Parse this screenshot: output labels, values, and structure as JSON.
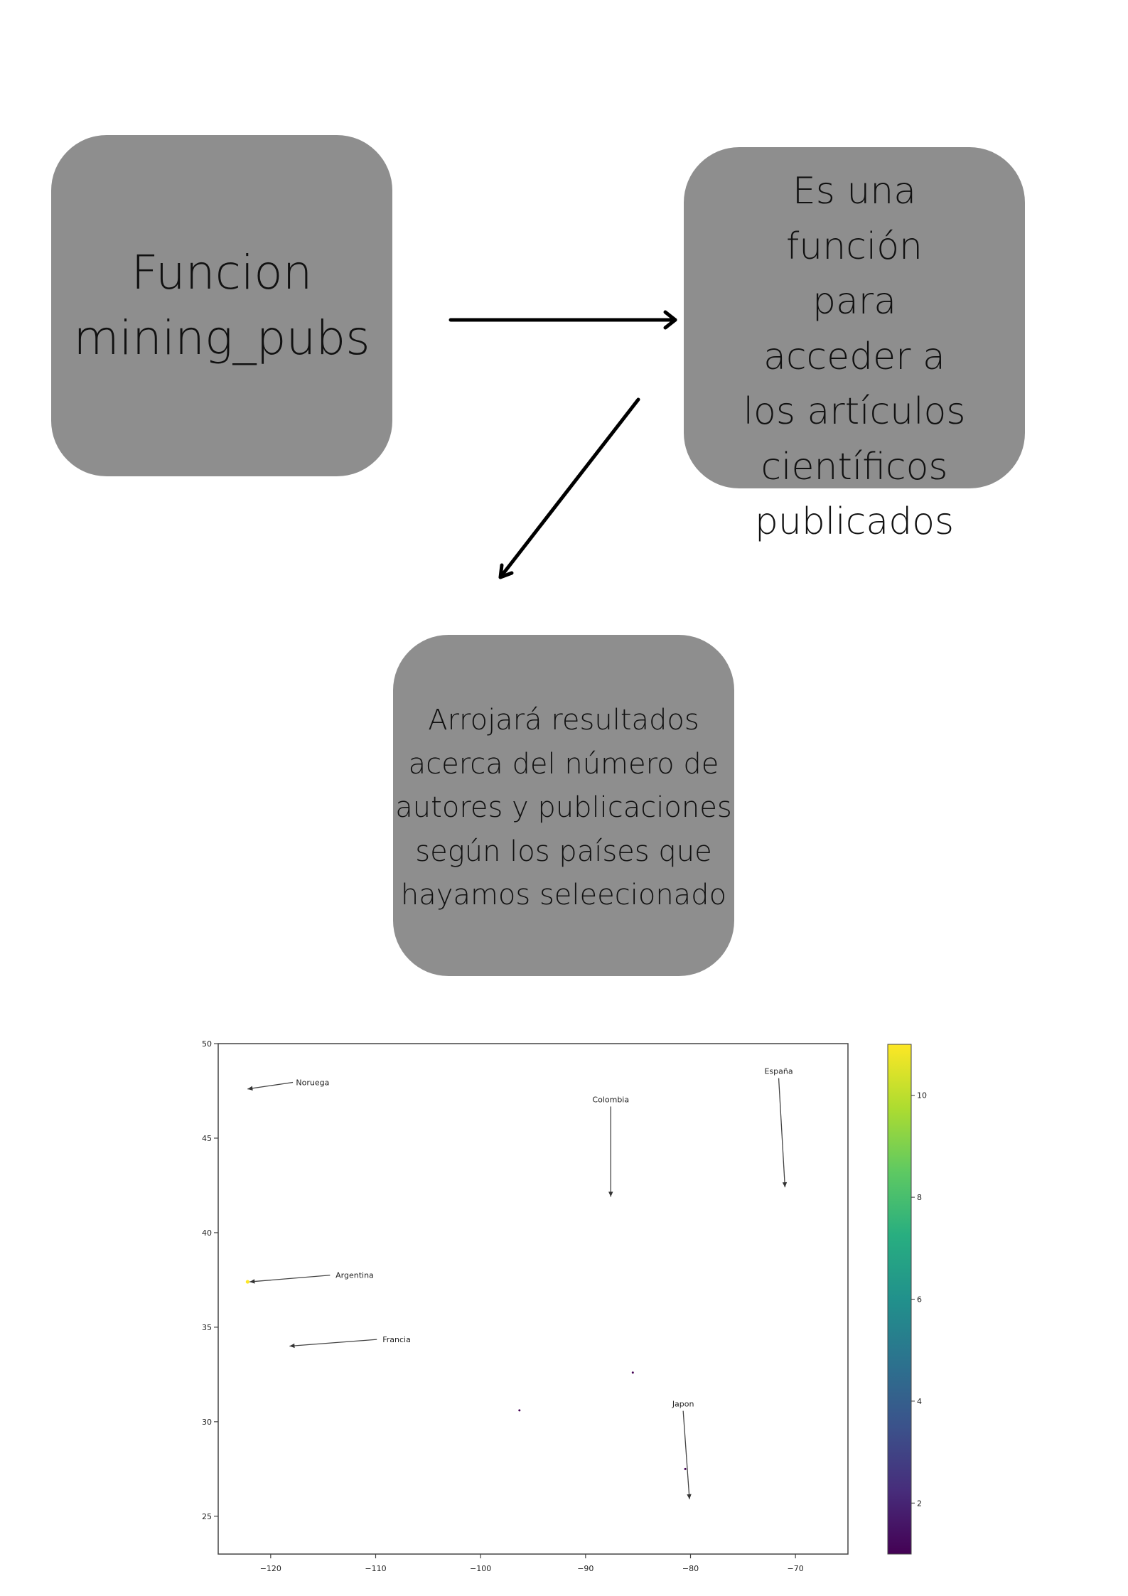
{
  "diagram": {
    "nodes": [
      {
        "id": "node1",
        "lines": [
          "Funcion",
          "mining_pubs"
        ]
      },
      {
        "id": "node2",
        "lines": [
          "Es una",
          "función",
          "para",
          "acceder a",
          "los artículos",
          "científicos",
          "publicados"
        ]
      },
      {
        "id": "node3",
        "lines": [
          "Arrojará resultados",
          "acerca del número de",
          "autores y publicaciones",
          "según los países que",
          "hayamos seleecionado"
        ]
      }
    ],
    "edges": [
      {
        "from": "node1",
        "to": "node2"
      },
      {
        "from": "node2",
        "to": "node3"
      }
    ]
  },
  "chart_data": {
    "type": "scatter",
    "title": "",
    "xlabel": "",
    "ylabel": "",
    "xlim": [
      -125,
      -65
    ],
    "ylim": [
      23,
      50
    ],
    "x_ticks": [
      -120,
      -110,
      -100,
      -90,
      -80,
      -70
    ],
    "y_ticks": [
      25,
      30,
      35,
      40,
      45,
      50
    ],
    "grid": false,
    "points": [
      {
        "x": -122.2,
        "y": 37.4,
        "value": 11
      },
      {
        "x": -96.3,
        "y": 30.6,
        "value": 1
      },
      {
        "x": -85.5,
        "y": 32.6,
        "value": 1
      },
      {
        "x": -80.5,
        "y": 27.5,
        "value": 1
      }
    ],
    "annotations": [
      {
        "text": "Noruega",
        "text_x": -116,
        "text_y": 47.8,
        "arrow_x": -122.2,
        "arrow_y": 47.6
      },
      {
        "text": "Colombia",
        "text_x": -87.6,
        "text_y": 46.9,
        "arrow_x": -87.6,
        "arrow_y": 41.9
      },
      {
        "text": "España",
        "text_x": -71.6,
        "text_y": 48.4,
        "arrow_x": -71.0,
        "arrow_y": 42.4
      },
      {
        "text": "Argentina",
        "text_x": -112,
        "text_y": 37.6,
        "arrow_x": -122.0,
        "arrow_y": 37.4
      },
      {
        "text": "Francia",
        "text_x": -108,
        "text_y": 34.2,
        "arrow_x": -118.2,
        "arrow_y": 34.0
      },
      {
        "text": "Japon",
        "text_x": -80.7,
        "text_y": 30.8,
        "arrow_x": -80.1,
        "arrow_y": 25.9
      }
    ],
    "colorbar": {
      "colormap": "viridis",
      "range": [
        1,
        11
      ],
      "ticks": [
        2,
        4,
        6,
        8,
        10
      ]
    }
  }
}
